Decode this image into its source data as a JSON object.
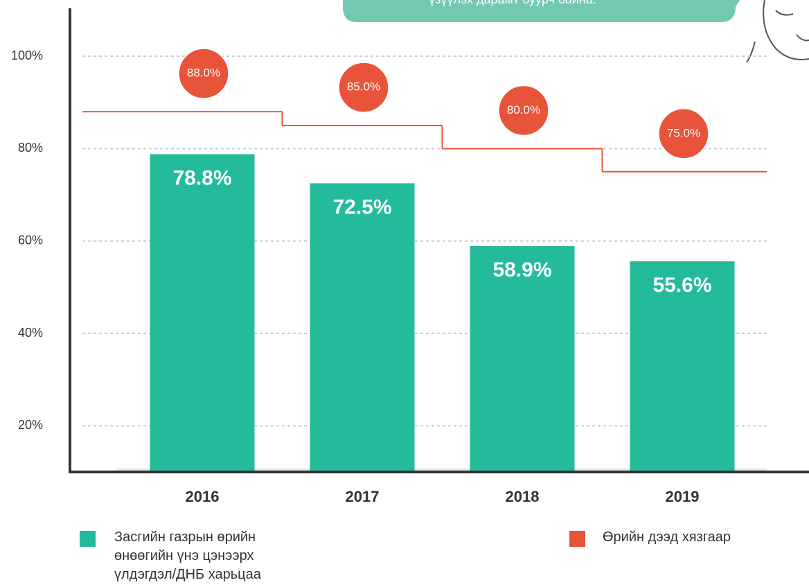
{
  "chart_data": {
    "type": "bar",
    "annotation": "үзүүлэх дарамт буурч байна.",
    "categories": [
      "2016",
      "2017",
      "2018",
      "2019"
    ],
    "series": [
      {
        "name": "Засгийн газрын өрийн\nөнөөгийн үнэ цэнээрх\nүлдэгдэл/ДНБ харьцаа",
        "type": "bar",
        "color": "#24bb9b",
        "values": [
          78.8,
          72.5,
          58.9,
          55.6
        ],
        "value_labels": [
          "78.8%",
          "72.5%",
          "58.9%",
          "55.6%"
        ]
      },
      {
        "name": "Өрийн дээд хязгаар",
        "type": "step",
        "color": "#e8543a",
        "values": [
          88,
          85,
          80,
          75
        ],
        "value_labels": [
          "88.0%",
          "85.0%",
          "80.0%",
          "75.0%"
        ]
      }
    ],
    "ylim": [
      10,
      110
    ],
    "yticks": [
      {
        "value": 20,
        "label": "20%"
      },
      {
        "value": 40,
        "label": "40%"
      },
      {
        "value": 60,
        "label": "60%"
      },
      {
        "value": 80,
        "label": "80%"
      },
      {
        "value": 100,
        "label": "100%"
      }
    ],
    "grid": true
  }
}
